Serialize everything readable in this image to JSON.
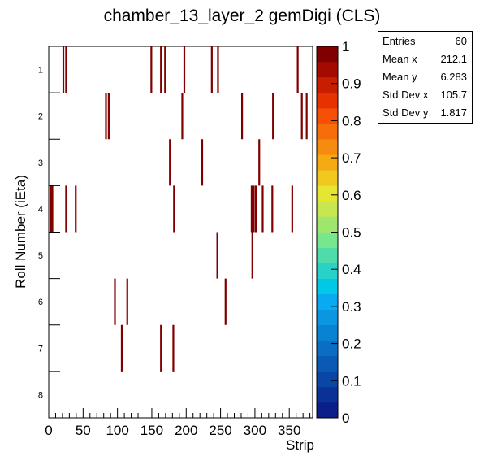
{
  "title": "chamber_13_layer_2 gemDigi (CLS)",
  "chart_data": {
    "type": "heatmap",
    "title": "chamber_13_layer_2 gemDigi (CLS)",
    "xlabel": "Strip",
    "ylabel": "Roll Number (iEta)",
    "xlim": [
      0,
      384
    ],
    "x_ticks": [
      "0",
      "50",
      "100",
      "150",
      "200",
      "250",
      "300",
      "350"
    ],
    "x_tick_values": [
      0,
      50,
      100,
      150,
      200,
      250,
      300,
      350
    ],
    "y_categories": [
      "1",
      "2",
      "3",
      "4",
      "5",
      "6",
      "7",
      "8"
    ],
    "z_range": [
      0,
      1
    ],
    "z_ticks": [
      "0",
      "0.1",
      "0.2",
      "0.3",
      "0.4",
      "0.5",
      "0.6",
      "0.7",
      "0.8",
      "0.9",
      "1"
    ],
    "z_tick_values": [
      0,
      0.1,
      0.2,
      0.3,
      0.4,
      0.5,
      0.6,
      0.7,
      0.8,
      0.9,
      1.0
    ],
    "palette": [
      "#0a1e8c",
      "#0a3296",
      "#0a46a5",
      "#0a5ab4",
      "#0a6ec3",
      "#0a82d2",
      "#0a96e1",
      "#0aaaf0",
      "#00c8e6",
      "#28d2c8",
      "#50dcaa",
      "#78e68c",
      "#a0e66e",
      "#c8e650",
      "#e6e632",
      "#f0c81e",
      "#f5aa14",
      "#f58c0f",
      "#f56e0a",
      "#f55005",
      "#e63200",
      "#c81e00",
      "#a50a00",
      "#800000"
    ],
    "cell_color": "#800000",
    "cells": [
      {
        "roll": 1,
        "strips": [
          20,
          24,
          148,
          162,
          168,
          196,
          236,
          245,
          361
        ]
      },
      {
        "roll": 2,
        "strips": [
          82,
          86,
          193,
          280,
          325,
          367,
          374
        ]
      },
      {
        "roll": 3,
        "strips": [
          175,
          222,
          305
        ]
      },
      {
        "roll": 4,
        "strips": [
          2,
          4,
          24,
          38,
          181,
          294,
          297,
          300,
          310,
          324,
          353
        ]
      },
      {
        "roll": 5,
        "strips": [
          244,
          295
        ]
      },
      {
        "roll": 6,
        "strips": [
          95,
          113,
          256
        ]
      },
      {
        "roll": 7,
        "strips": [
          105,
          162,
          180
        ]
      },
      {
        "roll": 8,
        "strips": []
      }
    ]
  },
  "stats": [
    {
      "label": "Entries",
      "value": "60"
    },
    {
      "label": "Mean x",
      "value": "212.1"
    },
    {
      "label": "Mean y",
      "value": "6.283"
    },
    {
      "label": "Std Dev x",
      "value": "105.7"
    },
    {
      "label": "Std Dev y",
      "value": "1.817"
    }
  ]
}
